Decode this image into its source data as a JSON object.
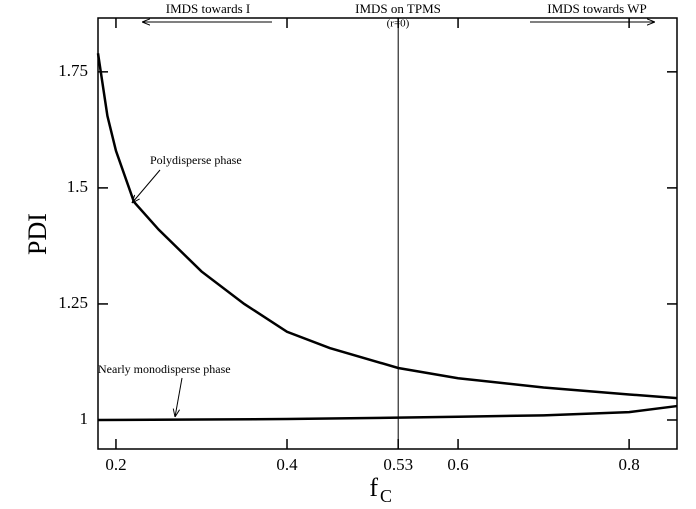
{
  "chart_data": {
    "type": "line",
    "ylabel": "PDI",
    "xlabel": "f",
    "xlabel_sub": "C",
    "xlim": [
      0.179,
      0.856
    ],
    "ylim": [
      0.9375,
      1.866
    ],
    "xticks": [
      0.2,
      0.4,
      0.53,
      0.6,
      0.8
    ],
    "yticks": [
      1,
      1.25,
      1.5,
      1.75
    ],
    "vline_x": 0.53,
    "region_labels": [
      "IMDS towards I",
      "IMDS on TPMS",
      "(r=0)",
      "IMDS towards WP"
    ],
    "annotations": [
      "Polydisperse phase",
      "Nearly monodisperse phase"
    ],
    "series": [
      {
        "name": "Polydisperse phase",
        "color": "#000000",
        "x": [
          0.179,
          0.19,
          0.2,
          0.221,
          0.25,
          0.3,
          0.35,
          0.4,
          0.45,
          0.53,
          0.6,
          0.7,
          0.8,
          0.856
        ],
        "values": [
          1.79,
          1.655,
          1.58,
          1.47,
          1.41,
          1.32,
          1.25,
          1.19,
          1.155,
          1.112,
          1.09,
          1.07,
          1.055,
          1.047
        ]
      },
      {
        "name": "Nearly monodisperse phase",
        "color": "#000000",
        "x": [
          0.179,
          0.3,
          0.4,
          0.53,
          0.6,
          0.7,
          0.8,
          0.856
        ],
        "values": [
          1.0,
          1.001,
          1.002,
          1.005,
          1.007,
          1.01,
          1.017,
          1.03
        ]
      }
    ]
  }
}
